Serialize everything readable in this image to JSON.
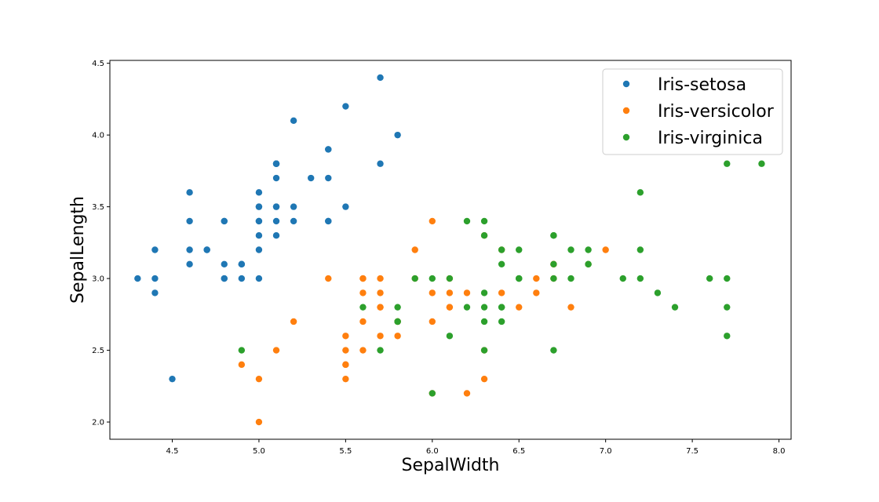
{
  "chart_data": {
    "type": "scatter",
    "title": "",
    "xlabel": "SepalWidth",
    "ylabel": "SepalLength",
    "xlim": [
      4.14,
      8.07
    ],
    "ylim": [
      1.88,
      4.52
    ],
    "xticks": [
      4.5,
      5.0,
      5.5,
      6.0,
      6.5,
      7.0,
      7.5,
      8.0
    ],
    "yticks": [
      2.0,
      2.5,
      3.0,
      3.5,
      4.0,
      4.5
    ],
    "xtick_labels": [
      "4.5",
      "5.0",
      "5.5",
      "6.0",
      "6.5",
      "7.0",
      "7.5",
      "8.0"
    ],
    "ytick_labels": [
      "2.0",
      "2.5",
      "3.0",
      "3.5",
      "4.0",
      "4.5"
    ],
    "grid": false,
    "legend": "top-right",
    "series": [
      {
        "name": "Iris-setosa",
        "color": "#1f77b4",
        "points": [
          [
            5.1,
            3.5
          ],
          [
            4.9,
            3.0
          ],
          [
            4.7,
            3.2
          ],
          [
            4.6,
            3.1
          ],
          [
            5.0,
            3.6
          ],
          [
            5.4,
            3.9
          ],
          [
            4.6,
            3.4
          ],
          [
            5.0,
            3.4
          ],
          [
            4.4,
            2.9
          ],
          [
            4.9,
            3.1
          ],
          [
            5.4,
            3.7
          ],
          [
            4.8,
            3.4
          ],
          [
            4.8,
            3.0
          ],
          [
            4.3,
            3.0
          ],
          [
            5.8,
            4.0
          ],
          [
            5.7,
            4.4
          ],
          [
            5.4,
            3.9
          ],
          [
            5.1,
            3.5
          ],
          [
            5.7,
            3.8
          ],
          [
            5.1,
            3.8
          ],
          [
            5.4,
            3.4
          ],
          [
            5.1,
            3.7
          ],
          [
            4.6,
            3.6
          ],
          [
            5.1,
            3.3
          ],
          [
            4.8,
            3.4
          ],
          [
            5.0,
            3.0
          ],
          [
            5.0,
            3.4
          ],
          [
            5.2,
            3.5
          ],
          [
            5.2,
            3.4
          ],
          [
            4.7,
            3.2
          ],
          [
            4.8,
            3.1
          ],
          [
            5.4,
            3.4
          ],
          [
            5.2,
            4.1
          ],
          [
            5.5,
            4.2
          ],
          [
            4.9,
            3.1
          ],
          [
            5.0,
            3.2
          ],
          [
            5.5,
            3.5
          ],
          [
            4.9,
            3.1
          ],
          [
            4.4,
            3.0
          ],
          [
            5.1,
            3.4
          ],
          [
            5.0,
            3.5
          ],
          [
            4.5,
            2.3
          ],
          [
            4.4,
            3.2
          ],
          [
            5.0,
            3.5
          ],
          [
            5.1,
            3.8
          ],
          [
            4.8,
            3.0
          ],
          [
            5.1,
            3.8
          ],
          [
            4.6,
            3.2
          ],
          [
            5.3,
            3.7
          ],
          [
            5.0,
            3.3
          ]
        ]
      },
      {
        "name": "Iris-versicolor",
        "color": "#ff7f0e",
        "points": [
          [
            7.0,
            3.2
          ],
          [
            6.4,
            3.2
          ],
          [
            6.9,
            3.1
          ],
          [
            5.5,
            2.3
          ],
          [
            6.5,
            2.8
          ],
          [
            5.7,
            2.8
          ],
          [
            6.3,
            3.3
          ],
          [
            4.9,
            2.4
          ],
          [
            6.6,
            2.9
          ],
          [
            5.2,
            2.7
          ],
          [
            5.0,
            2.0
          ],
          [
            5.9,
            3.0
          ],
          [
            6.0,
            2.2
          ],
          [
            6.1,
            2.9
          ],
          [
            5.6,
            2.9
          ],
          [
            6.7,
            3.1
          ],
          [
            5.6,
            3.0
          ],
          [
            5.8,
            2.7
          ],
          [
            6.2,
            2.2
          ],
          [
            5.6,
            2.5
          ],
          [
            5.9,
            3.2
          ],
          [
            6.1,
            2.8
          ],
          [
            6.3,
            2.5
          ],
          [
            6.1,
            2.8
          ],
          [
            6.4,
            2.9
          ],
          [
            6.6,
            3.0
          ],
          [
            6.8,
            2.8
          ],
          [
            6.7,
            3.0
          ],
          [
            6.0,
            2.9
          ],
          [
            5.7,
            2.6
          ],
          [
            5.5,
            2.4
          ],
          [
            5.5,
            2.4
          ],
          [
            5.8,
            2.7
          ],
          [
            6.0,
            2.7
          ],
          [
            5.4,
            3.0
          ],
          [
            6.0,
            3.4
          ],
          [
            6.7,
            3.1
          ],
          [
            6.3,
            2.3
          ],
          [
            5.6,
            3.0
          ],
          [
            5.5,
            2.5
          ],
          [
            5.5,
            2.6
          ],
          [
            6.1,
            3.0
          ],
          [
            5.8,
            2.6
          ],
          [
            5.0,
            2.3
          ],
          [
            5.6,
            2.7
          ],
          [
            5.7,
            3.0
          ],
          [
            5.7,
            2.9
          ],
          [
            6.2,
            2.9
          ],
          [
            5.1,
            2.5
          ],
          [
            5.7,
            2.8
          ]
        ]
      },
      {
        "name": "Iris-virginica",
        "color": "#2ca02c",
        "points": [
          [
            6.3,
            3.3
          ],
          [
            5.8,
            2.7
          ],
          [
            7.1,
            3.0
          ],
          [
            6.3,
            2.9
          ],
          [
            6.5,
            3.0
          ],
          [
            7.6,
            3.0
          ],
          [
            4.9,
            2.5
          ],
          [
            7.3,
            2.9
          ],
          [
            6.7,
            2.5
          ],
          [
            7.2,
            3.6
          ],
          [
            6.5,
            3.2
          ],
          [
            6.4,
            2.7
          ],
          [
            6.8,
            3.0
          ],
          [
            5.7,
            2.5
          ],
          [
            5.8,
            2.8
          ],
          [
            6.4,
            3.2
          ],
          [
            6.5,
            3.0
          ],
          [
            7.7,
            3.8
          ],
          [
            7.7,
            2.6
          ],
          [
            6.0,
            2.2
          ],
          [
            6.9,
            3.2
          ],
          [
            5.6,
            2.8
          ],
          [
            7.7,
            2.8
          ],
          [
            6.3,
            2.7
          ],
          [
            6.7,
            3.3
          ],
          [
            7.2,
            3.2
          ],
          [
            6.2,
            2.8
          ],
          [
            6.1,
            3.0
          ],
          [
            6.4,
            2.8
          ],
          [
            7.2,
            3.0
          ],
          [
            7.4,
            2.8
          ],
          [
            7.9,
            3.8
          ],
          [
            6.4,
            2.8
          ],
          [
            6.3,
            2.8
          ],
          [
            6.1,
            2.6
          ],
          [
            7.7,
            3.0
          ],
          [
            6.3,
            3.4
          ],
          [
            6.4,
            3.1
          ],
          [
            6.0,
            3.0
          ],
          [
            6.9,
            3.1
          ],
          [
            6.7,
            3.1
          ],
          [
            6.9,
            3.1
          ],
          [
            5.8,
            2.7
          ],
          [
            6.8,
            3.2
          ],
          [
            6.7,
            3.3
          ],
          [
            6.7,
            3.0
          ],
          [
            6.3,
            2.5
          ],
          [
            6.5,
            3.0
          ],
          [
            6.2,
            3.4
          ],
          [
            5.9,
            3.0
          ]
        ]
      }
    ]
  }
}
